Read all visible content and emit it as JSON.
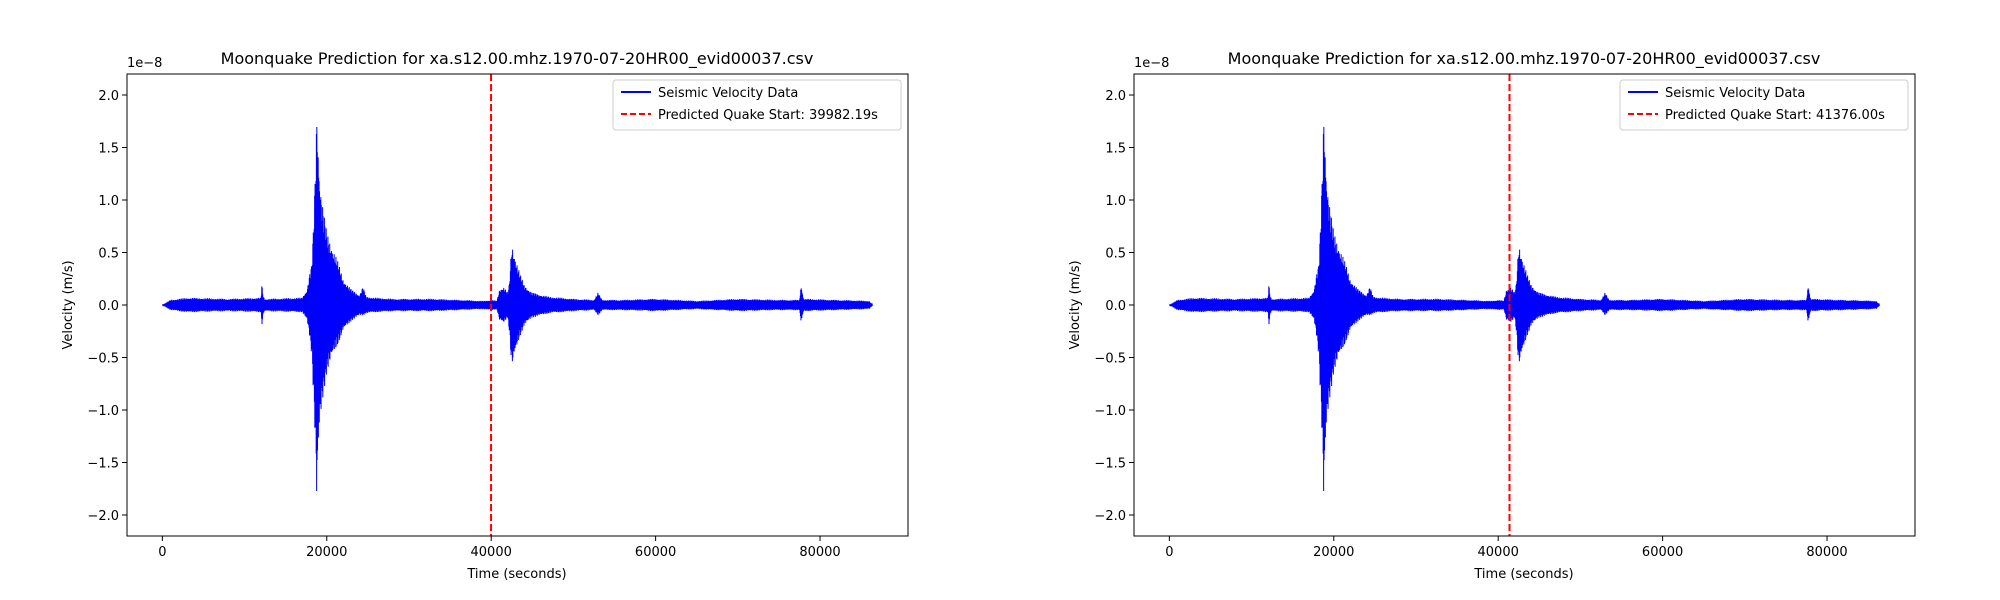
{
  "chart_data": [
    {
      "type": "line",
      "title": "Moonquake Prediction for xa.s12.00.mhz.1970-07-20HR00_evid00037.csv",
      "xlabel": "Time (seconds)",
      "ylabel": "Velocity (m/s)",
      "y_offset_label": "1e−8",
      "xlim": [
        -4300,
        90700
      ],
      "ylim": [
        -2.2,
        2.2
      ],
      "xticks": [
        0,
        20000,
        40000,
        60000,
        80000
      ],
      "xtick_labels": [
        "0",
        "20000",
        "40000",
        "60000",
        "80000"
      ],
      "yticks": [
        -2.0,
        -1.5,
        -1.0,
        -0.5,
        0.0,
        0.5,
        1.0,
        1.5,
        2.0
      ],
      "ytick_labels": [
        "−2.0",
        "−1.5",
        "−1.0",
        "−0.5",
        "0.0",
        "0.5",
        "1.0",
        "1.5",
        "2.0"
      ],
      "grid": false,
      "legend_position": "upper-right",
      "series": [
        {
          "name": "Seismic Velocity Data",
          "style": "solid",
          "color": "#0000ff",
          "envelope": {
            "x": [
              0,
              1000,
              3000,
              8000,
              12000,
              12100,
              12300,
              12500,
              17000,
              17600,
              17900,
              18200,
              18400,
              18600,
              18700,
              18800,
              18900,
              19000,
              19200,
              19600,
              20000,
              21000,
              22000,
              23000,
              24000,
              24400,
              24800,
              26000,
              28000,
              30000,
              33000,
              36000,
              39000,
              40000,
              40700,
              41000,
              41500,
              42000,
              42200,
              42500,
              43000,
              43500,
              44000,
              45000,
              47000,
              50000,
              52500,
              53000,
              53500,
              56000,
              60000,
              65000,
              70000,
              75000,
              77500,
              77700,
              78000,
              82000,
              86000,
              86400
            ],
            "upper": [
              0.0,
              0.05,
              0.07,
              0.06,
              0.07,
              0.2,
              0.08,
              0.06,
              0.07,
              0.15,
              0.3,
              0.4,
              0.8,
              1.3,
              1.7,
              1.95,
              1.8,
              1.5,
              1.2,
              0.9,
              0.7,
              0.5,
              0.25,
              0.15,
              0.1,
              0.18,
              0.08,
              0.07,
              0.06,
              0.06,
              0.06,
              0.05,
              0.04,
              0.05,
              0.04,
              0.15,
              0.18,
              0.12,
              0.2,
              0.6,
              0.45,
              0.3,
              0.2,
              0.12,
              0.08,
              0.06,
              0.05,
              0.12,
              0.05,
              0.05,
              0.06,
              0.04,
              0.06,
              0.05,
              0.05,
              0.2,
              0.06,
              0.05,
              0.04,
              0.0
            ],
            "lower": [
              0.0,
              -0.05,
              -0.07,
              -0.06,
              -0.07,
              -0.2,
              -0.08,
              -0.06,
              -0.07,
              -0.15,
              -0.3,
              -0.5,
              -0.9,
              -1.3,
              -1.7,
              -2.0,
              -1.6,
              -1.4,
              -1.15,
              -0.85,
              -0.65,
              -0.45,
              -0.25,
              -0.15,
              -0.1,
              -0.1,
              -0.08,
              -0.07,
              -0.06,
              -0.06,
              -0.06,
              -0.05,
              -0.04,
              -0.05,
              -0.04,
              -0.15,
              -0.18,
              -0.12,
              -0.25,
              -0.62,
              -0.45,
              -0.3,
              -0.2,
              -0.12,
              -0.08,
              -0.06,
              -0.05,
              -0.1,
              -0.05,
              -0.05,
              -0.06,
              -0.04,
              -0.06,
              -0.05,
              -0.05,
              -0.18,
              -0.06,
              -0.05,
              -0.04,
              0.0
            ]
          }
        },
        {
          "name": "Predicted Quake Start: 39982.19s",
          "style": "dashed",
          "color": "#ff0000",
          "x": 39982.19
        }
      ]
    },
    {
      "type": "line",
      "title": "Moonquake Prediction for xa.s12.00.mhz.1970-07-20HR00_evid00037.csv",
      "xlabel": "Time (seconds)",
      "ylabel": "Velocity (m/s)",
      "y_offset_label": "1e−8",
      "xlim": [
        -4300,
        90700
      ],
      "ylim": [
        -2.2,
        2.2
      ],
      "xticks": [
        0,
        20000,
        40000,
        60000,
        80000
      ],
      "xtick_labels": [
        "0",
        "20000",
        "40000",
        "60000",
        "80000"
      ],
      "yticks": [
        -2.0,
        -1.5,
        -1.0,
        -0.5,
        0.0,
        0.5,
        1.0,
        1.5,
        2.0
      ],
      "ytick_labels": [
        "−2.0",
        "−1.5",
        "−1.0",
        "−0.5",
        "0.0",
        "0.5",
        "1.0",
        "1.5",
        "2.0"
      ],
      "grid": false,
      "legend_position": "upper-right",
      "series": [
        {
          "name": "Seismic Velocity Data",
          "style": "solid",
          "color": "#0000ff",
          "envelope": {
            "x": [
              0,
              1000,
              3000,
              8000,
              12000,
              12100,
              12300,
              12500,
              17000,
              17600,
              17900,
              18200,
              18400,
              18600,
              18700,
              18800,
              18900,
              19000,
              19200,
              19600,
              20000,
              21000,
              22000,
              23000,
              24000,
              24400,
              24800,
              26000,
              28000,
              30000,
              33000,
              36000,
              39000,
              40000,
              40700,
              41000,
              41500,
              42000,
              42200,
              42500,
              43000,
              43500,
              44000,
              45000,
              47000,
              50000,
              52500,
              53000,
              53500,
              56000,
              60000,
              65000,
              70000,
              75000,
              77500,
              77700,
              78000,
              82000,
              86000,
              86400
            ],
            "upper": [
              0.0,
              0.05,
              0.07,
              0.06,
              0.07,
              0.2,
              0.08,
              0.06,
              0.07,
              0.15,
              0.3,
              0.4,
              0.8,
              1.3,
              1.7,
              1.95,
              1.8,
              1.5,
              1.2,
              0.9,
              0.7,
              0.5,
              0.25,
              0.15,
              0.1,
              0.18,
              0.08,
              0.07,
              0.06,
              0.06,
              0.06,
              0.05,
              0.04,
              0.05,
              0.04,
              0.15,
              0.18,
              0.12,
              0.2,
              0.6,
              0.45,
              0.3,
              0.2,
              0.12,
              0.08,
              0.06,
              0.05,
              0.12,
              0.05,
              0.05,
              0.06,
              0.04,
              0.06,
              0.05,
              0.05,
              0.2,
              0.06,
              0.05,
              0.04,
              0.0
            ],
            "lower": [
              0.0,
              -0.05,
              -0.07,
              -0.06,
              -0.07,
              -0.2,
              -0.08,
              -0.06,
              -0.07,
              -0.15,
              -0.3,
              -0.5,
              -0.9,
              -1.3,
              -1.7,
              -2.0,
              -1.6,
              -1.4,
              -1.15,
              -0.85,
              -0.65,
              -0.45,
              -0.25,
              -0.15,
              -0.1,
              -0.1,
              -0.08,
              -0.07,
              -0.06,
              -0.06,
              -0.06,
              -0.05,
              -0.04,
              -0.05,
              -0.04,
              -0.15,
              -0.18,
              -0.12,
              -0.25,
              -0.62,
              -0.45,
              -0.3,
              -0.2,
              -0.12,
              -0.08,
              -0.06,
              -0.05,
              -0.1,
              -0.05,
              -0.05,
              -0.06,
              -0.04,
              -0.06,
              -0.05,
              -0.05,
              -0.18,
              -0.06,
              -0.05,
              -0.04,
              0.0
            ]
          }
        },
        {
          "name": "Predicted Quake Start: 41376.00s",
          "style": "dashed",
          "color": "#ff0000",
          "x": 41376.0
        }
      ]
    }
  ]
}
